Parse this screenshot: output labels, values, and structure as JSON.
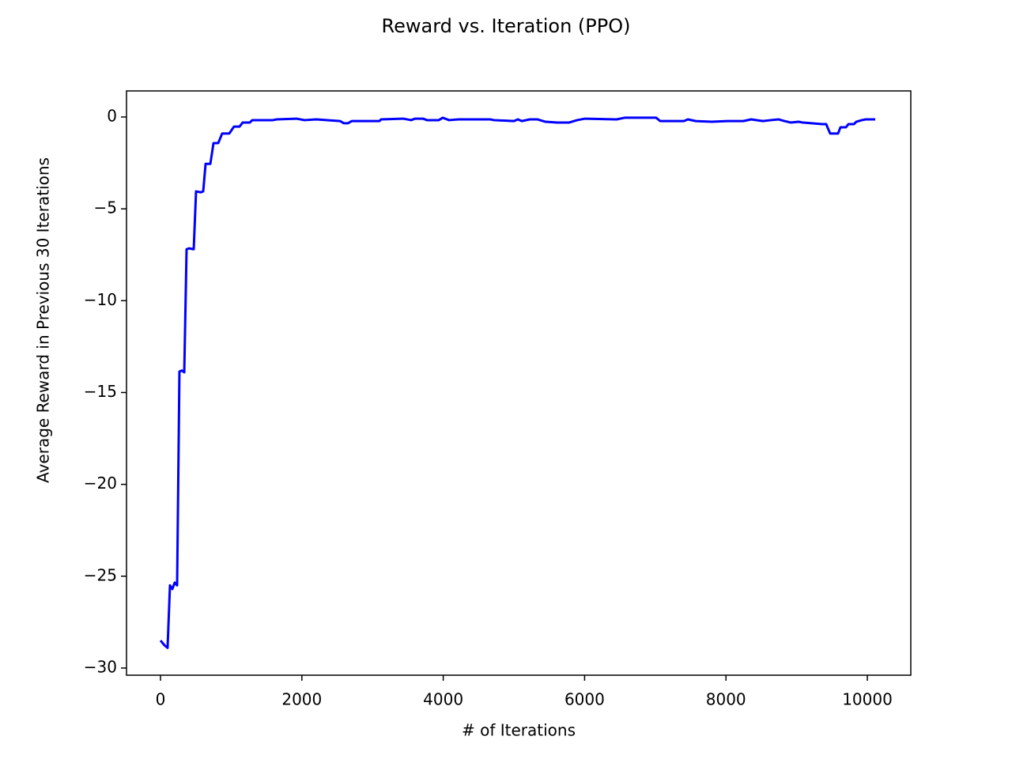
{
  "chart_data": {
    "type": "line",
    "title": "Reward vs. Iteration (PPO)",
    "x_label": "# of Iterations",
    "y_label": "Average Reward in Previous 30 Iterations",
    "x": [
      0,
      56,
      100,
      134,
      168,
      201,
      235,
      268,
      302,
      336,
      369,
      403,
      470,
      503,
      570,
      604,
      638,
      705,
      750,
      817,
      872,
      973,
      1040,
      1119,
      1163,
      1264,
      1298,
      1588,
      1644,
      1924,
      2036,
      2204,
      2540,
      2595,
      2651,
      2707,
      3098,
      3120,
      3434,
      3546,
      3602,
      3714,
      3770,
      3937,
      3993,
      4083,
      4217,
      4664,
      4720,
      5000,
      5056,
      5112,
      5224,
      5336,
      5447,
      5615,
      5783,
      5895,
      6007,
      6454,
      6566,
      7013,
      7069,
      7405,
      7461,
      7573,
      7796,
      8020,
      8244,
      8356,
      8523,
      8635,
      8747,
      8826,
      8915,
      9027,
      9083,
      9362,
      9418,
      9474,
      9586,
      9620,
      9698,
      9732,
      9810,
      9843,
      9922,
      9978,
      10112
    ],
    "series": [
      {
        "name": "PPO",
        "color": "#0000ff",
        "values": [
          -28.5,
          -28.76,
          -28.9,
          -25.5,
          -25.7,
          -25.35,
          -25.5,
          -13.86,
          -13.8,
          -13.9,
          -7.2,
          -7.15,
          -7.2,
          -4.05,
          -4.1,
          -4.05,
          -2.55,
          -2.55,
          -1.42,
          -1.42,
          -0.9,
          -0.9,
          -0.52,
          -0.52,
          -0.3,
          -0.3,
          -0.17,
          -0.17,
          -0.13,
          -0.09,
          -0.17,
          -0.13,
          -0.22,
          -0.34,
          -0.34,
          -0.22,
          -0.22,
          -0.13,
          -0.09,
          -0.17,
          -0.09,
          -0.09,
          -0.17,
          -0.17,
          -0.04,
          -0.17,
          -0.13,
          -0.13,
          -0.17,
          -0.22,
          -0.13,
          -0.22,
          -0.13,
          -0.13,
          -0.26,
          -0.3,
          -0.3,
          -0.17,
          -0.09,
          -0.13,
          -0.04,
          -0.04,
          -0.22,
          -0.22,
          -0.13,
          -0.22,
          -0.26,
          -0.22,
          -0.22,
          -0.13,
          -0.22,
          -0.17,
          -0.13,
          -0.22,
          -0.3,
          -0.26,
          -0.3,
          -0.39,
          -0.39,
          -0.9,
          -0.9,
          -0.56,
          -0.56,
          -0.39,
          -0.39,
          -0.26,
          -0.17,
          -0.13,
          -0.13
        ]
      }
    ],
    "xlim": [
      -481,
      10615
    ],
    "ylim": [
      -30.39,
      1.42
    ],
    "xticks": [
      0,
      2000,
      4000,
      6000,
      8000,
      10000
    ],
    "yticks": [
      {
        "value": -30,
        "label": "−30"
      },
      {
        "value": -25,
        "label": "−25"
      },
      {
        "value": -20,
        "label": "−20"
      },
      {
        "value": -15,
        "label": "−15"
      },
      {
        "value": -10,
        "label": "−10"
      },
      {
        "value": -5,
        "label": "−5"
      },
      0
    ],
    "grid": false
  }
}
